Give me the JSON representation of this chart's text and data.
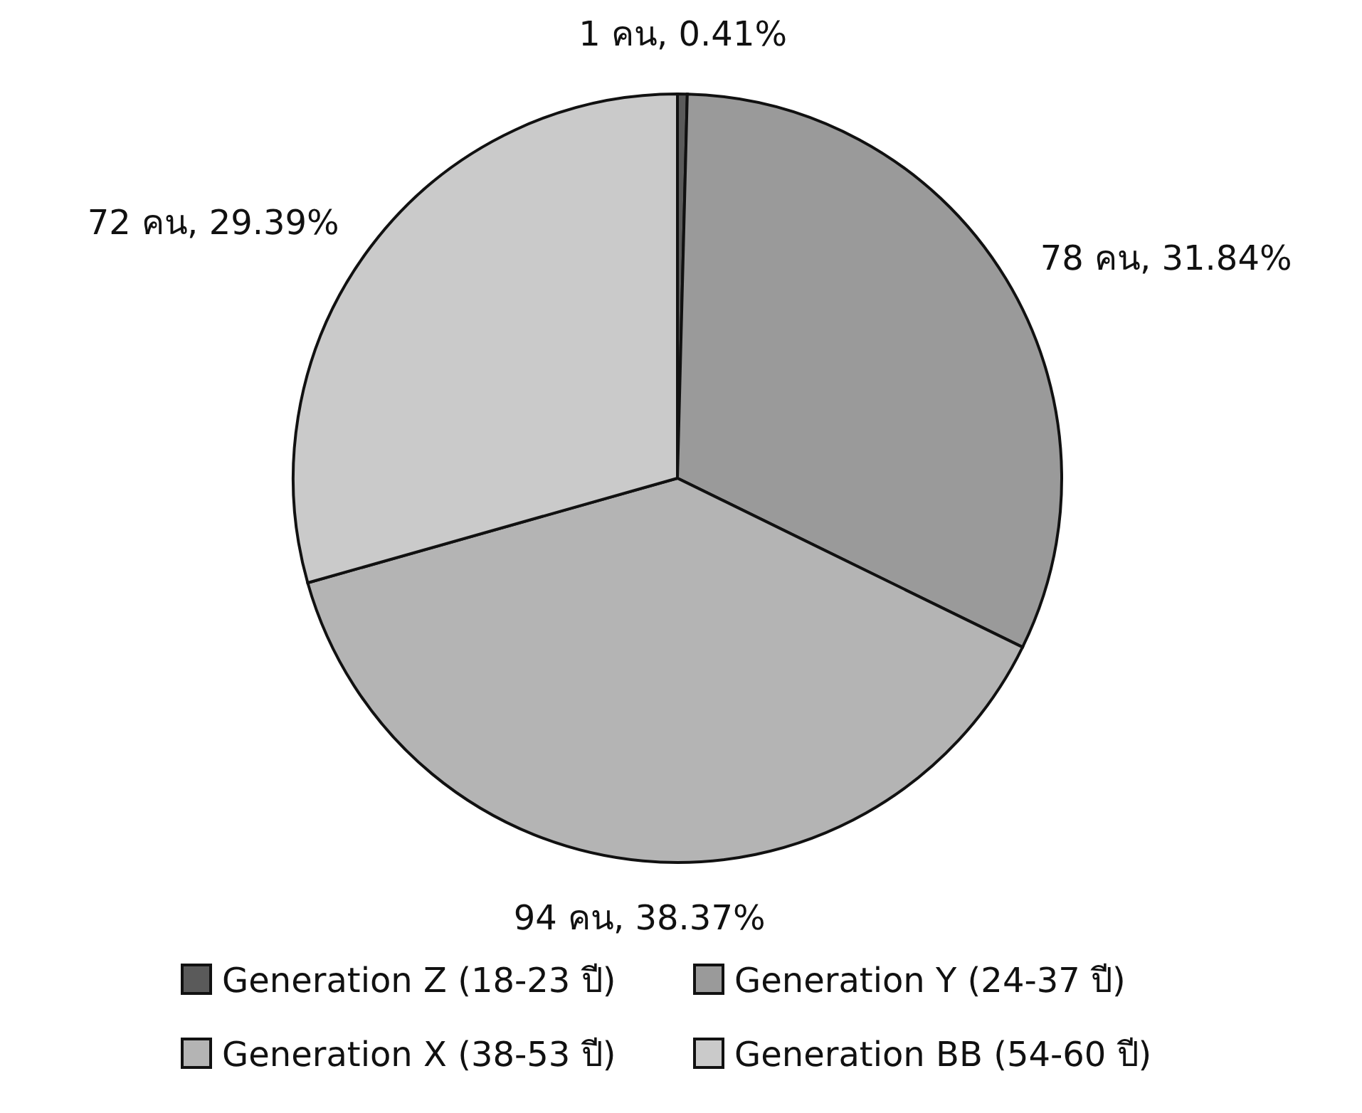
{
  "chart_data": {
    "type": "pie",
    "categories": [
      "Generation Z (18-23 ปี)",
      "Generation Y (24-37 ปี)",
      "Generation X (38-53 ปี)",
      "Generation BB (54-60 ปี)"
    ],
    "values": [
      1,
      78,
      94,
      72
    ],
    "value_labels": [
      "1 คน, 0.41%",
      "78 คน, 31.84%",
      "94 คน, 38.37%",
      "72 คน, 29.39%"
    ],
    "colors": [
      "#5a5a5a",
      "#9a9a9a",
      "#b4b4b4",
      "#cacaca"
    ],
    "legend": "bottom"
  }
}
